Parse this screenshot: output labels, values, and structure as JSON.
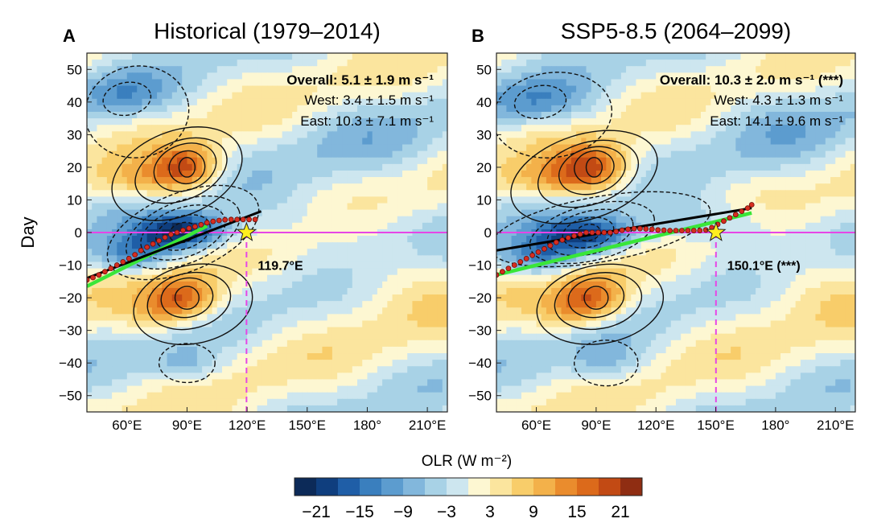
{
  "chart_data": {
    "type": "heatmap",
    "shared_ylabel": "Day",
    "yticks": [
      50,
      40,
      30,
      20,
      10,
      0,
      -10,
      -20,
      -30,
      -40,
      -50
    ],
    "ytick_labels": [
      "50",
      "40",
      "30",
      "20",
      "10",
      "0",
      "−10",
      "−20",
      "−30",
      "−40",
      "−50"
    ],
    "xticks": [
      60,
      90,
      120,
      150,
      180,
      210
    ],
    "xtick_labels": [
      "60°E",
      "90°E",
      "120°E",
      "150°E",
      "180°",
      "210°E"
    ],
    "xlim": [
      40,
      220
    ],
    "ylim": [
      -55,
      55
    ],
    "panels": [
      {
        "letter": "A",
        "title": "Historical (1979–2014)",
        "overall": "Overall: 5.1 ± 1.9 m s⁻¹",
        "west": "West: 3.4 ± 1.5 m s⁻¹",
        "east": "East: 10.3 ± 7.1 m s⁻¹",
        "star_lon": 119.7,
        "star_label": "119.7°E",
        "fit_line": [
          [
            40,
            -14
          ],
          [
            127,
            6.5
          ]
        ],
        "green_line": [
          [
            40,
            -16.5
          ],
          [
            100,
            2
          ]
        ],
        "red_points": [
          [
            40,
            -14.5
          ],
          [
            43,
            -13.8
          ],
          [
            46,
            -13
          ],
          [
            49,
            -12
          ],
          [
            52,
            -11
          ],
          [
            55,
            -10
          ],
          [
            58,
            -9
          ],
          [
            61,
            -8
          ],
          [
            64,
            -6.8
          ],
          [
            67,
            -5.5
          ],
          [
            70,
            -4.5
          ],
          [
            73,
            -3.5
          ],
          [
            76,
            -2.5
          ],
          [
            79,
            -1.5
          ],
          [
            82,
            -0.6
          ],
          [
            85,
            0
          ],
          [
            88,
            0.7
          ],
          [
            91,
            1.3
          ],
          [
            94,
            1.8
          ],
          [
            97,
            2.4
          ],
          [
            100,
            3
          ],
          [
            103,
            3.4
          ],
          [
            106,
            3.7
          ],
          [
            109,
            3.9
          ],
          [
            112,
            4
          ],
          [
            115,
            4
          ],
          [
            118,
            4
          ],
          [
            121,
            4
          ],
          [
            124,
            4
          ]
        ],
        "cells": [
          {
            "lon": 58,
            "day": 42,
            "sd": [
              18,
              5
            ],
            "v": -8
          },
          {
            "lon": 90,
            "day": 20,
            "sd": [
              12,
              5
            ],
            "v": 17
          },
          {
            "lon": 68,
            "day": 16,
            "sd": [
              16,
              4
            ],
            "v": 8
          },
          {
            "lon": 88,
            "day": 0,
            "sd": [
              16,
              4
            ],
            "v": -21
          },
          {
            "lon": 64,
            "day": -7,
            "sd": [
              14,
              4
            ],
            "v": -12
          },
          {
            "lon": 88,
            "day": -20,
            "sd": [
              13,
              5
            ],
            "v": 17
          },
          {
            "lon": 74,
            "day": -25,
            "sd": [
              13,
              4
            ],
            "v": 6
          },
          {
            "lon": 90,
            "day": -41,
            "sd": [
              12,
              4
            ],
            "v": -7
          },
          {
            "lon": 160,
            "day": 3,
            "sd": [
              45,
              6
            ],
            "v": -4
          },
          {
            "lon": 195,
            "day": -15,
            "sd": [
              28,
              8
            ],
            "v": 4
          },
          {
            "lon": 175,
            "day": 30,
            "sd": [
              30,
              10
            ],
            "v": -3
          }
        ],
        "solid_contours": [
          {
            "cx": 85,
            "cy": 18,
            "rx": 34,
            "ry": 13,
            "rot": -22
          },
          {
            "cx": 87,
            "cy": 19,
            "rx": 24,
            "ry": 9,
            "rot": -22
          },
          {
            "cx": 89,
            "cy": 20,
            "rx": 16,
            "ry": 7,
            "rot": -20
          },
          {
            "cx": 90,
            "cy": 20,
            "rx": 9,
            "ry": 5,
            "rot": -15
          },
          {
            "cx": 90,
            "cy": 20,
            "rx": 4,
            "ry": 3,
            "rot": 0
          },
          {
            "cx": 93,
            "cy": -22,
            "rx": 30,
            "ry": 12,
            "rot": -12
          },
          {
            "cx": 91,
            "cy": -21,
            "rx": 21,
            "ry": 8.5,
            "rot": -12
          },
          {
            "cx": 90,
            "cy": -20,
            "rx": 13,
            "ry": 6,
            "rot": -10
          },
          {
            "cx": 90,
            "cy": -20,
            "rx": 6,
            "ry": 3.5,
            "rot": 0
          }
        ],
        "dashed_contours": [
          {
            "cx": 65,
            "cy": 37,
            "rx": 26,
            "ry": 14,
            "rot": -10
          },
          {
            "cx": 60,
            "cy": 41,
            "rx": 12,
            "ry": 5,
            "rot": -10
          },
          {
            "cx": 88,
            "cy": 0,
            "rx": 40,
            "ry": 12,
            "rot": -22
          },
          {
            "cx": 88,
            "cy": 0,
            "rx": 30,
            "ry": 9.5,
            "rot": -22
          },
          {
            "cx": 88,
            "cy": 0,
            "rx": 22,
            "ry": 7.5,
            "rot": -20
          },
          {
            "cx": 88,
            "cy": 0,
            "rx": 14,
            "ry": 5,
            "rot": -18
          },
          {
            "cx": 88,
            "cy": 0,
            "rx": 7,
            "ry": 3,
            "rot": -15
          },
          {
            "cx": 90,
            "cy": -40,
            "rx": 14,
            "ry": 6,
            "rot": 0
          }
        ]
      },
      {
        "letter": "B",
        "title": "SSP5-8.5 (2064–2099)",
        "overall": "Overall: 10.3 ± 2.0 m s⁻¹ (***)",
        "west": "West: 4.3 ± 1.3 m s⁻¹",
        "east": "East: 14.1 ± 9.6 m s⁻¹",
        "star_lon": 150.1,
        "star_label": "150.1°E (***)",
        "fit_line": [
          [
            40,
            -5.5
          ],
          [
            168,
            7.5
          ]
        ],
        "green_line": [
          [
            40,
            -13
          ],
          [
            168,
            6
          ]
        ],
        "red_points": [
          [
            40,
            -13
          ],
          [
            43,
            -12
          ],
          [
            46,
            -11
          ],
          [
            49,
            -10
          ],
          [
            52,
            -9
          ],
          [
            55,
            -8
          ],
          [
            58,
            -7
          ],
          [
            61,
            -6
          ],
          [
            64,
            -5
          ],
          [
            67,
            -4
          ],
          [
            70,
            -3
          ],
          [
            73,
            -2.3
          ],
          [
            76,
            -1.6
          ],
          [
            79,
            -1
          ],
          [
            82,
            -0.5
          ],
          [
            85,
            0
          ],
          [
            88,
            0
          ],
          [
            91,
            0
          ],
          [
            94,
            0
          ],
          [
            97,
            0
          ],
          [
            100,
            0.3
          ],
          [
            103,
            0.7
          ],
          [
            106,
            1
          ],
          [
            109,
            1.2
          ],
          [
            112,
            1.2
          ],
          [
            115,
            1.1
          ],
          [
            118,
            1
          ],
          [
            121,
            0.8
          ],
          [
            124,
            0.7
          ],
          [
            127,
            0.6
          ],
          [
            130,
            0.6
          ],
          [
            133,
            0.6
          ],
          [
            136,
            0.6
          ],
          [
            139,
            0.6
          ],
          [
            142,
            0.6
          ],
          [
            145,
            0.8
          ],
          [
            148,
            1.5
          ],
          [
            151,
            2.5
          ],
          [
            154,
            3.5
          ],
          [
            157,
            4.5
          ],
          [
            160,
            5.5
          ],
          [
            163,
            6.5
          ],
          [
            166,
            7.5
          ],
          [
            168,
            8.5
          ]
        ],
        "cells": [
          {
            "lon": 60,
            "day": 40,
            "sd": [
              20,
              5
            ],
            "v": -9
          },
          {
            "lon": 88,
            "day": 20,
            "sd": [
              14,
              5
            ],
            "v": 17
          },
          {
            "lon": 68,
            "day": 16,
            "sd": [
              18,
              4
            ],
            "v": 8
          },
          {
            "lon": 86,
            "day": -1,
            "sd": [
              18,
              4
            ],
            "v": -20
          },
          {
            "lon": 62,
            "day": -8,
            "sd": [
              15,
              4
            ],
            "v": -12
          },
          {
            "lon": 88,
            "day": -20,
            "sd": [
              13,
              5
            ],
            "v": 17
          },
          {
            "lon": 74,
            "day": -25,
            "sd": [
              13,
              4
            ],
            "v": 6
          },
          {
            "lon": 95,
            "day": -40,
            "sd": [
              14,
              5
            ],
            "v": -7
          },
          {
            "lon": 150,
            "day": 3,
            "sd": [
              30,
              5
            ],
            "v": -7
          },
          {
            "lon": 185,
            "day": 35,
            "sd": [
              30,
              10
            ],
            "v": -4
          },
          {
            "lon": 195,
            "day": -15,
            "sd": [
              28,
              8
            ],
            "v": 4
          }
        ],
        "solid_contours": [
          {
            "cx": 84,
            "cy": 17,
            "rx": 38,
            "ry": 13,
            "rot": -18
          },
          {
            "cx": 86,
            "cy": 18,
            "rx": 26,
            "ry": 9.5,
            "rot": -18
          },
          {
            "cx": 88,
            "cy": 19,
            "rx": 17,
            "ry": 7,
            "rot": -16
          },
          {
            "cx": 89,
            "cy": 20,
            "rx": 10,
            "ry": 5,
            "rot": -12
          },
          {
            "cx": 89,
            "cy": 20,
            "rx": 4,
            "ry": 3,
            "rot": 0
          },
          {
            "cx": 92,
            "cy": -22,
            "rx": 32,
            "ry": 12,
            "rot": -10
          },
          {
            "cx": 91,
            "cy": -21,
            "rx": 22,
            "ry": 8.5,
            "rot": -10
          },
          {
            "cx": 90,
            "cy": -20,
            "rx": 14,
            "ry": 6,
            "rot": -8
          },
          {
            "cx": 90,
            "cy": -20,
            "rx": 6,
            "ry": 3.5,
            "rot": 0
          }
        ],
        "dashed_contours": [
          {
            "cx": 68,
            "cy": 36,
            "rx": 30,
            "ry": 13,
            "rot": -8
          },
          {
            "cx": 62,
            "cy": 40,
            "rx": 13,
            "ry": 5,
            "rot": -8
          },
          {
            "cx": 92,
            "cy": 1,
            "rx": 56,
            "ry": 10,
            "rot": -10
          },
          {
            "cx": 88,
            "cy": 0,
            "rx": 32,
            "ry": 8.5,
            "rot": -14
          },
          {
            "cx": 87,
            "cy": 0,
            "rx": 22,
            "ry": 6.5,
            "rot": -14
          },
          {
            "cx": 86,
            "cy": 0,
            "rx": 13,
            "ry": 4.5,
            "rot": -12
          },
          {
            "cx": 86,
            "cy": 0,
            "rx": 6,
            "ry": 2.5,
            "rot": -10
          },
          {
            "cx": 95,
            "cy": -40,
            "rx": 16,
            "ry": 7,
            "rot": 0
          }
        ]
      }
    ],
    "colorbar": {
      "label": "OLR (W m⁻²)",
      "range": [
        -24,
        24
      ],
      "colors": [
        "#0c2a58",
        "#0f3e7e",
        "#1f5ea7",
        "#3a7fbe",
        "#5c9ccf",
        "#82b7dc",
        "#a8d2e6",
        "#cde6ef",
        "#fdf7d2",
        "#fbe59e",
        "#f8cd6a",
        "#f3b14a",
        "#ea8c2d",
        "#dc6a1b",
        "#c24a14",
        "#8f2d12"
      ],
      "tick_values": [
        -21,
        -15,
        -9,
        -3,
        3,
        9,
        15,
        21
      ],
      "tick_labels": [
        "−21",
        "−15",
        "−9",
        "−3",
        "3",
        "9",
        "15",
        "21"
      ]
    }
  }
}
